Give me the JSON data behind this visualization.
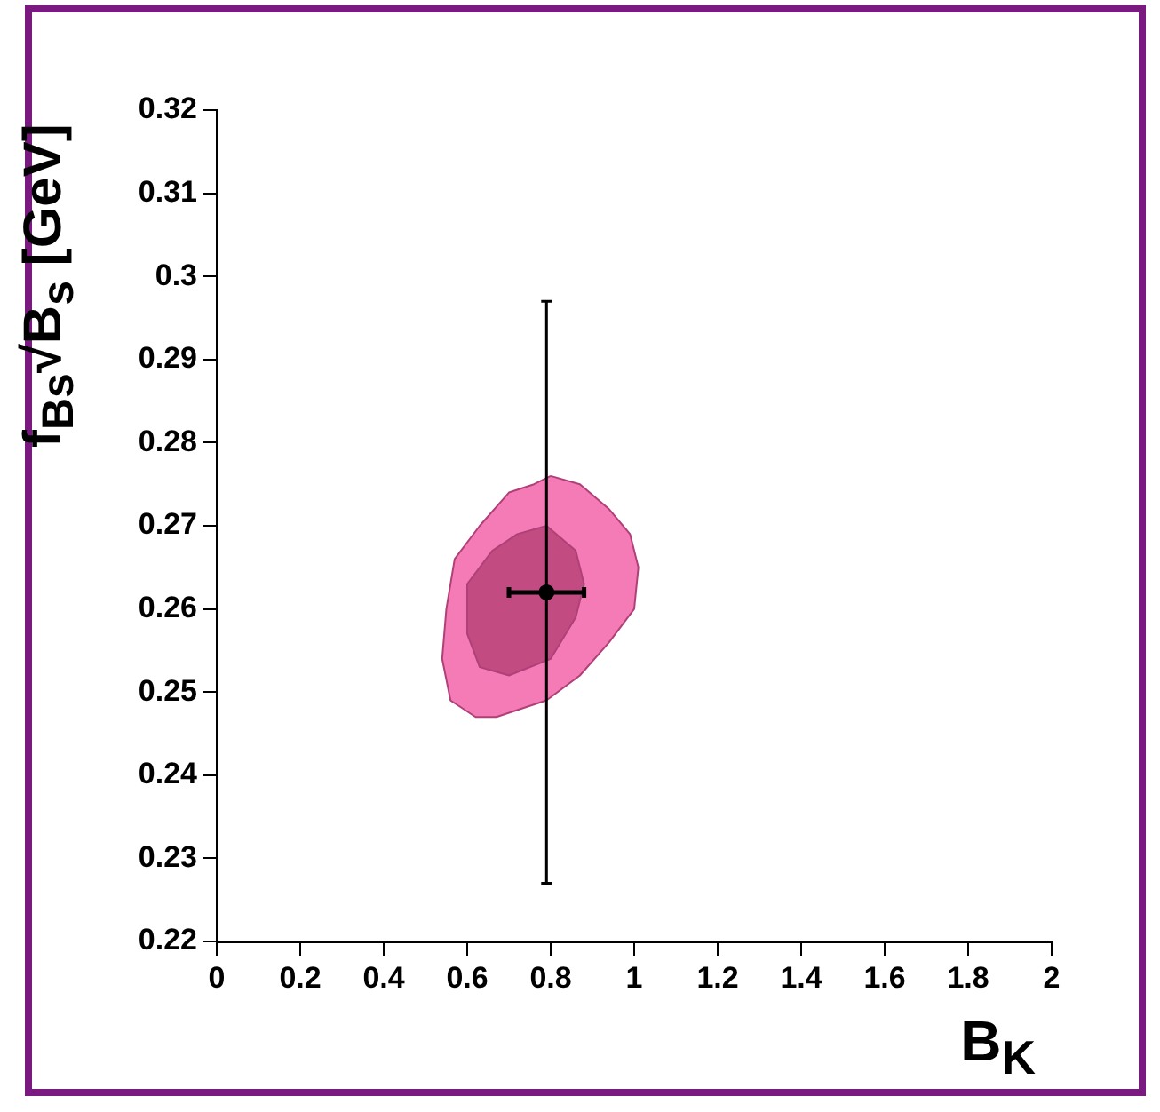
{
  "chart_data": {
    "type": "scatter",
    "xlabel": "B$_{K}$",
    "ylabel": "f$_{Bs}$√B$_{s}$ [GeV]",
    "xlim": [
      0,
      2
    ],
    "xticks": [
      0,
      0.2,
      0.4,
      0.6,
      0.8,
      1,
      1.2,
      1.4,
      1.6,
      1.8,
      2
    ],
    "ylim": [
      0.22,
      0.32
    ],
    "yticks": [
      0.22,
      0.23,
      0.24,
      0.25,
      0.26,
      0.27,
      0.28,
      0.29,
      0.3,
      0.31,
      0.32
    ],
    "grid": false,
    "legend": false,
    "series": [
      {
        "type": "area",
        "color": "#f47bb6",
        "x": [
          0.8,
          0.87,
          0.94,
          0.99,
          1.01,
          1.0,
          0.94,
          0.87,
          0.79,
          0.67,
          0.62,
          0.56,
          0.54,
          0.55,
          0.57,
          0.63,
          0.7,
          0.76
        ],
        "values": [
          0.276,
          0.275,
          0.272,
          0.269,
          0.265,
          0.26,
          0.256,
          0.252,
          0.249,
          0.247,
          0.247,
          0.249,
          0.254,
          0.26,
          0.266,
          0.27,
          0.274,
          0.275
        ]
      },
      {
        "type": "area",
        "color": "#c24b82",
        "x": [
          0.79,
          0.86,
          0.88,
          0.86,
          0.8,
          0.7,
          0.63,
          0.6,
          0.6,
          0.66,
          0.72
        ],
        "values": [
          0.27,
          0.267,
          0.263,
          0.259,
          0.254,
          0.252,
          0.253,
          0.257,
          0.263,
          0.267,
          0.269
        ]
      },
      {
        "type": "scatter",
        "color": "#000000",
        "marker": "circle",
        "x": [
          0.79
        ],
        "values": [
          0.262
        ],
        "errors": [
          [
            0.227,
            0.297
          ]
        ],
        "xerrors": [
          [
            0.7,
            0.88
          ]
        ]
      }
    ]
  }
}
